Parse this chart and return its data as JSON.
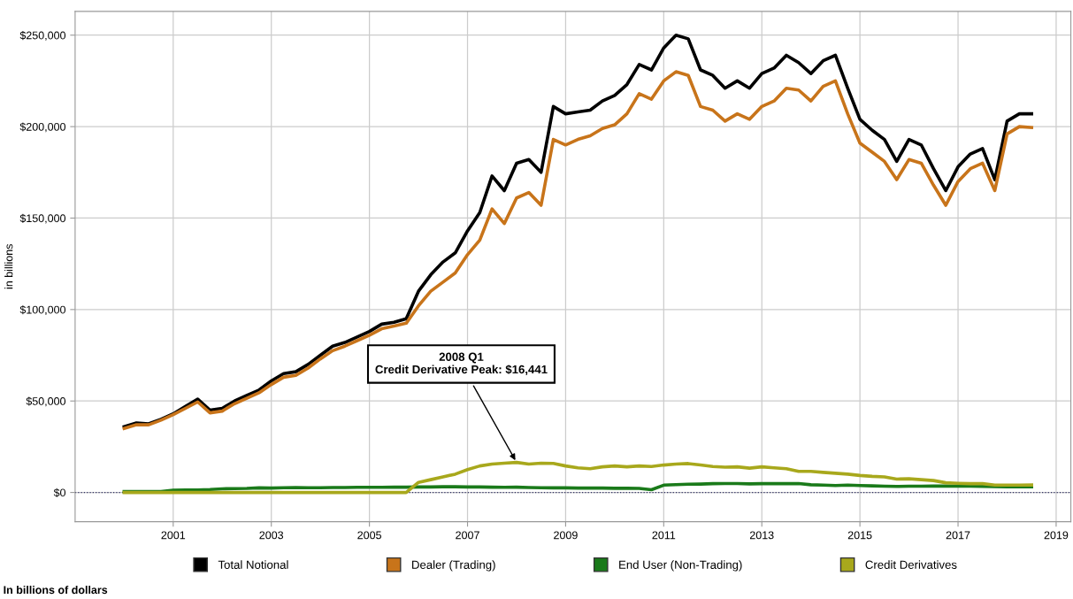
{
  "chart_data": {
    "type": "line",
    "ylabel": "in billions",
    "x": [
      2000.0,
      2000.25,
      2000.5,
      2000.75,
      2001.0,
      2001.25,
      2001.5,
      2001.75,
      2002.0,
      2002.25,
      2002.5,
      2002.75,
      2003.0,
      2003.25,
      2003.5,
      2003.75,
      2004.0,
      2004.25,
      2004.5,
      2004.75,
      2005.0,
      2005.25,
      2005.5,
      2005.75,
      2006.0,
      2006.25,
      2006.5,
      2006.75,
      2007.0,
      2007.25,
      2007.5,
      2007.75,
      2008.0,
      2008.25,
      2008.5,
      2008.75,
      2009.0,
      2009.25,
      2009.5,
      2009.75,
      2010.0,
      2010.25,
      2010.5,
      2010.75,
      2011.0,
      2011.25,
      2011.5,
      2011.75,
      2012.0,
      2012.25,
      2012.5,
      2012.75,
      2013.0,
      2013.25,
      2013.5,
      2013.75,
      2014.0,
      2014.25,
      2014.5,
      2014.75,
      2015.0,
      2015.25,
      2015.5,
      2015.75,
      2016.0,
      2016.25,
      2016.5,
      2016.75,
      2017.0,
      2017.25,
      2017.5,
      2017.75,
      2018.0,
      2018.25,
      2018.5
    ],
    "series": [
      {
        "name": "Total Notional",
        "color": "#000000",
        "values": [
          36000,
          38000,
          37500,
          40000,
          43000,
          47000,
          51000,
          45000,
          46000,
          50000,
          53000,
          56000,
          61000,
          65000,
          66000,
          70000,
          75000,
          80000,
          82000,
          85000,
          88000,
          92000,
          93000,
          95000,
          110000,
          119000,
          126000,
          131000,
          143000,
          153000,
          173000,
          165000,
          180000,
          182000,
          175000,
          211000,
          207000,
          208000,
          209000,
          214000,
          217000,
          223000,
          234000,
          231000,
          243000,
          250000,
          248000,
          231000,
          228000,
          221000,
          225000,
          221000,
          229000,
          232000,
          239000,
          235000,
          229000,
          236000,
          239000,
          221000,
          204000,
          198000,
          193000,
          181000,
          193000,
          190000,
          177000,
          165000,
          178000,
          185000,
          188000,
          171000,
          203000,
          207000,
          207000
        ]
      },
      {
        "name": "Dealer (Trading)",
        "color": "#c8741a",
        "values": [
          35000,
          37000,
          37000,
          39500,
          42500,
          46000,
          49500,
          43500,
          44500,
          48500,
          51500,
          54500,
          59000,
          63000,
          64000,
          68000,
          73000,
          77500,
          80000,
          83000,
          86000,
          89500,
          91000,
          92500,
          102000,
          110000,
          115000,
          120000,
          130000,
          138000,
          155000,
          147000,
          161000,
          164000,
          157000,
          193000,
          190000,
          193000,
          195000,
          199000,
          201000,
          207000,
          218000,
          215000,
          225000,
          230000,
          228000,
          211000,
          209000,
          203000,
          207000,
          204000,
          211000,
          214000,
          221000,
          220000,
          214000,
          222000,
          225000,
          207000,
          191000,
          186000,
          181000,
          171000,
          182000,
          180000,
          168000,
          157000,
          170000,
          177000,
          180000,
          165000,
          196000,
          200000,
          199500
        ]
      },
      {
        "name": "End User (Non-Trading)",
        "color": "#1a7a1a",
        "values": [
          500,
          500,
          500,
          500,
          1200,
          1300,
          1400,
          1600,
          2000,
          2100,
          2200,
          2500,
          2400,
          2600,
          2700,
          2600,
          2600,
          2700,
          2700,
          2800,
          2800,
          2800,
          2900,
          2900,
          3000,
          3000,
          3100,
          3100,
          3000,
          3000,
          2900,
          2800,
          2900,
          2700,
          2600,
          2500,
          2500,
          2400,
          2400,
          2400,
          2300,
          2300,
          2200,
          1500,
          4000,
          4300,
          4500,
          4600,
          4800,
          4900,
          4900,
          4700,
          4800,
          4800,
          4800,
          4900,
          4200,
          4000,
          3800,
          4000,
          3800,
          3600,
          3400,
          3300,
          3400,
          3400,
          3500,
          3500,
          3400,
          3400,
          3300,
          3200,
          3100,
          3100,
          3100
        ]
      },
      {
        "name": "Credit Derivatives",
        "color": "#a8a81c",
        "values": [
          0,
          0,
          0,
          0,
          0,
          0,
          0,
          0,
          0,
          0,
          0,
          0,
          0,
          0,
          0,
          0,
          0,
          0,
          0,
          0,
          0,
          0,
          0,
          0,
          5500,
          7000,
          8500,
          10000,
          12500,
          14500,
          15500,
          16000,
          16441,
          15500,
          16000,
          15900,
          14500,
          13500,
          13000,
          14000,
          14500,
          14000,
          14500,
          14200,
          15000,
          15500,
          15800,
          15000,
          14200,
          13800,
          14000,
          13300,
          14000,
          13500,
          13000,
          11500,
          11500,
          11000,
          10500,
          10000,
          9300,
          8800,
          8500,
          7300,
          7500,
          7000,
          6500,
          5300,
          5000,
          4800,
          4800,
          4000,
          4000,
          4000,
          4100
        ]
      }
    ],
    "xlim": [
      1999.0,
      2019.3
    ],
    "xticks": [
      2001,
      2003,
      2005,
      2007,
      2009,
      2011,
      2013,
      2015,
      2017,
      2019
    ],
    "ylim": [
      -16000,
      263000
    ],
    "yticks": [
      {
        "value": 0,
        "label": "$0"
      },
      {
        "value": 50000,
        "label": "$50,000"
      },
      {
        "value": 100000,
        "label": "$100,000"
      },
      {
        "value": 150000,
        "label": "$150,000"
      },
      {
        "value": 200000,
        "label": "$200,000"
      },
      {
        "value": 250000,
        "label": "$250,000"
      }
    ],
    "ref_lines": [
      {
        "axis": "y",
        "value": 0,
        "color": "#333366",
        "line_style": "dotted"
      }
    ],
    "annotations": [
      {
        "text": "2008 Q1\nCredit Derivative Peak: $16,441",
        "x": 2008.0,
        "y": 16441
      },
      "In billions of dollars"
    ],
    "grid": true,
    "legend": "bottom",
    "marker": "none",
    "line_style": "solid"
  }
}
